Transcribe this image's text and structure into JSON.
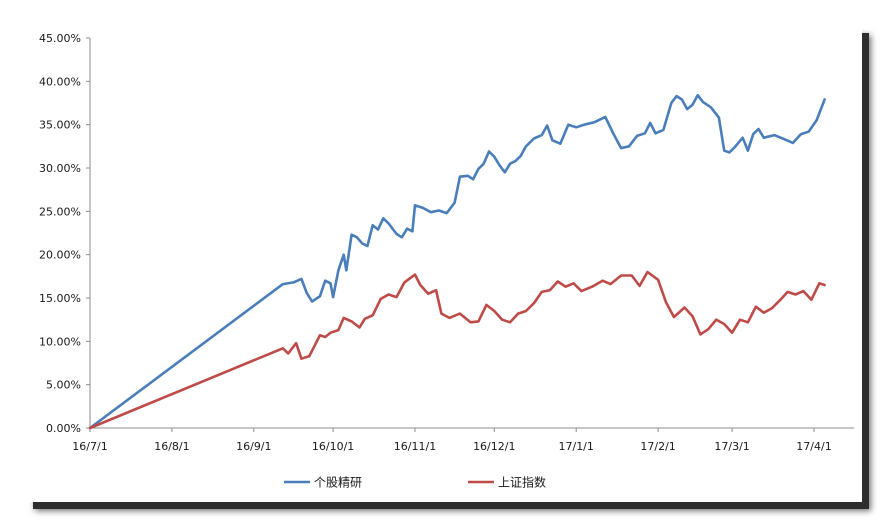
{
  "chart_data": {
    "type": "line",
    "title": "",
    "xlabel": "",
    "ylabel": "",
    "ylim": [
      0,
      45
    ],
    "y_ticks": [
      "0.00%",
      "5.00%",
      "10.00%",
      "15.00%",
      "20.00%",
      "25.00%",
      "30.00%",
      "35.00%",
      "40.00%",
      "45.00%"
    ],
    "x_ticks": [
      "16/7/1",
      "16/8/1",
      "16/9/1",
      "16/10/1",
      "16/11/1",
      "16/12/1",
      "17/1/1",
      "17/2/1",
      "17/3/1",
      "17/4/1"
    ],
    "x_ticks_date": [
      "2016-07-01",
      "2016-08-01",
      "2016-09-01",
      "2016-10-01",
      "2016-11-01",
      "2016-12-01",
      "2017-01-01",
      "2017-02-01",
      "2017-03-01",
      "2017-04-01"
    ],
    "grid": false,
    "legend": "bottom",
    "series": [
      {
        "name": "个股精研",
        "color": "#4a7ebb",
        "points": [
          [
            "2016-07-01",
            0.0
          ],
          [
            "2016-09-12",
            16.6
          ],
          [
            "2016-09-16",
            16.8
          ],
          [
            "2016-09-19",
            17.2
          ],
          [
            "2016-09-21",
            15.6
          ],
          [
            "2016-09-23",
            14.6
          ],
          [
            "2016-09-26",
            15.2
          ],
          [
            "2016-09-28",
            17.0
          ],
          [
            "2016-09-30",
            16.7
          ],
          [
            "2016-10-01",
            15.1
          ],
          [
            "2016-10-03",
            18.2
          ],
          [
            "2016-10-05",
            20.0
          ],
          [
            "2016-10-06",
            18.2
          ],
          [
            "2016-10-08",
            22.3
          ],
          [
            "2016-10-10",
            22.0
          ],
          [
            "2016-10-12",
            21.3
          ],
          [
            "2016-10-14",
            21.0
          ],
          [
            "2016-10-16",
            23.4
          ],
          [
            "2016-10-18",
            22.9
          ],
          [
            "2016-10-20",
            24.2
          ],
          [
            "2016-10-22",
            23.6
          ],
          [
            "2016-10-25",
            22.4
          ],
          [
            "2016-10-27",
            22.0
          ],
          [
            "2016-10-29",
            23.0
          ],
          [
            "2016-10-31",
            22.7
          ],
          [
            "2016-11-01",
            25.7
          ],
          [
            "2016-11-04",
            25.4
          ],
          [
            "2016-11-07",
            24.9
          ],
          [
            "2016-11-10",
            25.1
          ],
          [
            "2016-11-13",
            24.8
          ],
          [
            "2016-11-16",
            26.0
          ],
          [
            "2016-11-18",
            29.0
          ],
          [
            "2016-11-21",
            29.1
          ],
          [
            "2016-11-23",
            28.7
          ],
          [
            "2016-11-25",
            29.9
          ],
          [
            "2016-11-27",
            30.5
          ],
          [
            "2016-11-29",
            31.9
          ],
          [
            "2016-12-01",
            31.3
          ],
          [
            "2016-12-03",
            30.3
          ],
          [
            "2016-12-05",
            29.5
          ],
          [
            "2016-12-07",
            30.5
          ],
          [
            "2016-12-09",
            30.8
          ],
          [
            "2016-12-11",
            31.4
          ],
          [
            "2016-12-13",
            32.5
          ],
          [
            "2016-12-16",
            33.4
          ],
          [
            "2016-12-19",
            33.8
          ],
          [
            "2016-12-21",
            34.9
          ],
          [
            "2016-12-23",
            33.2
          ],
          [
            "2016-12-26",
            32.8
          ],
          [
            "2016-12-29",
            35.0
          ],
          [
            "2017-01-01",
            34.7
          ],
          [
            "2017-01-04",
            35.0
          ],
          [
            "2017-01-08",
            35.3
          ],
          [
            "2017-01-12",
            35.9
          ],
          [
            "2017-01-15",
            34.0
          ],
          [
            "2017-01-18",
            32.3
          ],
          [
            "2017-01-21",
            32.5
          ],
          [
            "2017-01-24",
            33.7
          ],
          [
            "2017-01-27",
            34.0
          ],
          [
            "2017-01-29",
            35.2
          ],
          [
            "2017-01-31",
            34.0
          ],
          [
            "2017-02-03",
            34.4
          ],
          [
            "2017-02-06",
            37.5
          ],
          [
            "2017-02-08",
            38.3
          ],
          [
            "2017-02-10",
            37.9
          ],
          [
            "2017-02-12",
            36.8
          ],
          [
            "2017-02-14",
            37.3
          ],
          [
            "2017-02-16",
            38.4
          ],
          [
            "2017-02-18",
            37.6
          ],
          [
            "2017-02-21",
            37.0
          ],
          [
            "2017-02-24",
            35.8
          ],
          [
            "2017-02-26",
            32.0
          ],
          [
            "2017-02-28",
            31.8
          ],
          [
            "2017-03-02",
            32.4
          ],
          [
            "2017-03-05",
            33.5
          ],
          [
            "2017-03-07",
            32.0
          ],
          [
            "2017-03-09",
            33.9
          ],
          [
            "2017-03-11",
            34.5
          ],
          [
            "2017-03-13",
            33.5
          ],
          [
            "2017-03-17",
            33.8
          ],
          [
            "2017-03-21",
            33.3
          ],
          [
            "2017-03-24",
            32.9
          ],
          [
            "2017-03-27",
            33.9
          ],
          [
            "2017-03-30",
            34.2
          ],
          [
            "2017-04-02",
            35.5
          ],
          [
            "2017-04-05",
            37.9
          ]
        ]
      },
      {
        "name": "上证指数",
        "color": "#be4b48",
        "points": [
          [
            "2016-07-01",
            0.0
          ],
          [
            "2016-09-12",
            9.2
          ],
          [
            "2016-09-14",
            8.6
          ],
          [
            "2016-09-17",
            9.8
          ],
          [
            "2016-09-19",
            8.0
          ],
          [
            "2016-09-22",
            8.3
          ],
          [
            "2016-09-26",
            10.7
          ],
          [
            "2016-09-28",
            10.5
          ],
          [
            "2016-09-30",
            11.0
          ],
          [
            "2016-10-03",
            11.3
          ],
          [
            "2016-10-05",
            12.7
          ],
          [
            "2016-10-08",
            12.3
          ],
          [
            "2016-10-11",
            11.6
          ],
          [
            "2016-10-13",
            12.6
          ],
          [
            "2016-10-16",
            13.0
          ],
          [
            "2016-10-19",
            14.9
          ],
          [
            "2016-10-22",
            15.4
          ],
          [
            "2016-10-25",
            15.1
          ],
          [
            "2016-10-28",
            16.8
          ],
          [
            "2016-11-01",
            17.7
          ],
          [
            "2016-11-03",
            16.5
          ],
          [
            "2016-11-06",
            15.5
          ],
          [
            "2016-11-09",
            15.9
          ],
          [
            "2016-11-11",
            13.2
          ],
          [
            "2016-11-14",
            12.7
          ],
          [
            "2016-11-18",
            13.2
          ],
          [
            "2016-11-22",
            12.2
          ],
          [
            "2016-11-25",
            12.3
          ],
          [
            "2016-11-28",
            14.2
          ],
          [
            "2016-12-01",
            13.5
          ],
          [
            "2016-12-04",
            12.5
          ],
          [
            "2016-12-07",
            12.2
          ],
          [
            "2016-12-10",
            13.2
          ],
          [
            "2016-12-13",
            13.5
          ],
          [
            "2016-12-16",
            14.4
          ],
          [
            "2016-12-19",
            15.7
          ],
          [
            "2016-12-22",
            15.9
          ],
          [
            "2016-12-25",
            16.9
          ],
          [
            "2016-12-28",
            16.3
          ],
          [
            "2016-12-31",
            16.7
          ],
          [
            "2017-01-03",
            15.8
          ],
          [
            "2017-01-07",
            16.3
          ],
          [
            "2017-01-11",
            17.0
          ],
          [
            "2017-01-14",
            16.6
          ],
          [
            "2017-01-18",
            17.6
          ],
          [
            "2017-01-22",
            17.6
          ],
          [
            "2017-01-25",
            16.4
          ],
          [
            "2017-01-28",
            18.0
          ],
          [
            "2017-02-01",
            17.1
          ],
          [
            "2017-02-04",
            14.5
          ],
          [
            "2017-02-07",
            12.8
          ],
          [
            "2017-02-11",
            13.9
          ],
          [
            "2017-02-14",
            12.9
          ],
          [
            "2017-02-17",
            10.8
          ],
          [
            "2017-02-20",
            11.4
          ],
          [
            "2017-02-23",
            12.5
          ],
          [
            "2017-02-26",
            12.0
          ],
          [
            "2017-03-01",
            11.0
          ],
          [
            "2017-03-04",
            12.5
          ],
          [
            "2017-03-07",
            12.2
          ],
          [
            "2017-03-10",
            14.0
          ],
          [
            "2017-03-13",
            13.3
          ],
          [
            "2017-03-16",
            13.8
          ],
          [
            "2017-03-19",
            14.7
          ],
          [
            "2017-03-22",
            15.7
          ],
          [
            "2017-03-25",
            15.4
          ],
          [
            "2017-03-28",
            15.8
          ],
          [
            "2017-03-31",
            14.8
          ],
          [
            "2017-04-03",
            16.7
          ],
          [
            "2017-04-05",
            16.5
          ]
        ]
      }
    ]
  }
}
